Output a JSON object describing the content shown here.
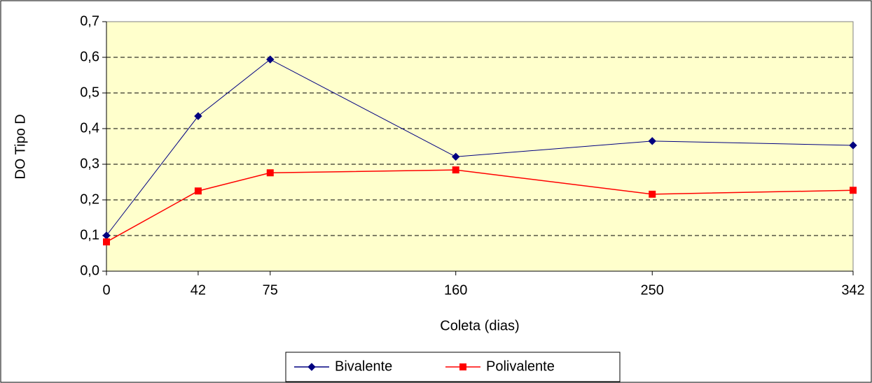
{
  "chart_data": {
    "type": "line",
    "x_label": "Coleta (dias)",
    "y_label": "DO Tipo D",
    "x": [
      0,
      42,
      75,
      160,
      250,
      342
    ],
    "series": [
      {
        "name": "Bivalente",
        "color": "#000080",
        "marker": "diamond",
        "values": [
          0.1,
          0.435,
          0.594,
          0.321,
          0.365,
          0.353
        ]
      },
      {
        "name": "Polivalente",
        "color": "#ff0000",
        "marker": "square",
        "values": [
          0.082,
          0.225,
          0.276,
          0.284,
          0.216,
          0.227
        ]
      }
    ],
    "xlim": [
      0,
      342
    ],
    "xticks": [
      0,
      42,
      75,
      160,
      250,
      342
    ],
    "ylim": [
      0,
      0.7
    ],
    "yticks": [
      {
        "value": 0,
        "label": "0,0"
      },
      {
        "value": 0.1,
        "label": "0,1"
      },
      {
        "value": 0.2,
        "label": "0,2"
      },
      {
        "value": 0.3,
        "label": "0,3"
      },
      {
        "value": 0.4,
        "label": "0,4"
      },
      {
        "value": 0.5,
        "label": "0,5"
      },
      {
        "value": 0.6,
        "label": "0,6"
      },
      {
        "value": 0.7,
        "label": "0,7"
      }
    ],
    "grid": true,
    "legend": "bottom"
  }
}
